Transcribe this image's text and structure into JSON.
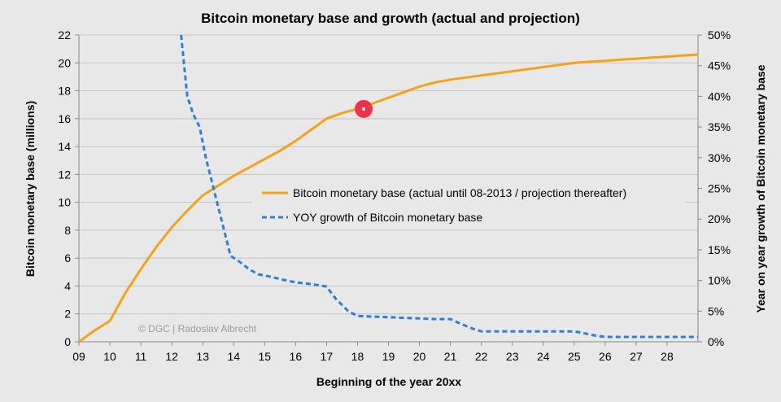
{
  "chart_data": {
    "type": "line",
    "title": "Bitcoin monetary base and growth (actual and projection)",
    "xlabel": "Beginning of the year 20xx",
    "ylabel": "Bitcoin monetary base (millions)",
    "y2label": "Year on year growth of Bitcoin monetary base",
    "xlim": [
      9,
      29
    ],
    "ylim": [
      0,
      22
    ],
    "y2lim": [
      0,
      50
    ],
    "x_ticks": [
      "09",
      "10",
      "11",
      "12",
      "13",
      "14",
      "15",
      "16",
      "17",
      "18",
      "19",
      "20",
      "21",
      "22",
      "23",
      "24",
      "25",
      "26",
      "27",
      "28"
    ],
    "y_ticks": [
      "0",
      "2",
      "4",
      "6",
      "8",
      "10",
      "12",
      "14",
      "16",
      "18",
      "20",
      "22"
    ],
    "y2_ticks": [
      "0%",
      "5%",
      "10%",
      "15%",
      "20%",
      "25%",
      "30%",
      "35%",
      "40%",
      "45%",
      "50%"
    ],
    "grid": "horizontal",
    "legend_position": "center-right",
    "copyright": "© DGC | Radoslav Albrecht",
    "highlight_point": {
      "x": 18.2,
      "y": 16.7,
      "color": "#f0314a"
    },
    "series": [
      {
        "name": "Bitcoin monetary base (actual until 08-2013 / projection thereafter)",
        "axis": "left",
        "color": "#f5a21b",
        "dash": "solid",
        "x": [
          9.0,
          9.5,
          10.0,
          10.5,
          11.0,
          11.5,
          12.0,
          12.5,
          13.0,
          13.5,
          14.0,
          14.5,
          15.0,
          15.5,
          16.0,
          16.5,
          17.0,
          17.5,
          18.0,
          18.5,
          19.0,
          19.5,
          20.0,
          20.5,
          21.0,
          21.5,
          22.0,
          22.5,
          23.0,
          23.5,
          24.0,
          24.5,
          25.0,
          25.5,
          26.0,
          26.5,
          27.0,
          27.5,
          28.0,
          28.5,
          29.0
        ],
        "values": [
          0.0,
          0.8,
          1.5,
          3.5,
          5.2,
          6.8,
          8.2,
          9.4,
          10.5,
          11.2,
          11.9,
          12.5,
          13.1,
          13.7,
          14.4,
          15.2,
          16.0,
          16.4,
          16.7,
          17.1,
          17.5,
          17.9,
          18.3,
          18.6,
          18.8,
          18.95,
          19.1,
          19.25,
          19.4,
          19.55,
          19.7,
          19.85,
          20.0,
          20.08,
          20.15,
          20.23,
          20.3,
          20.38,
          20.45,
          20.53,
          20.6
        ]
      },
      {
        "name": "YOY growth of Bitcoin monetary base",
        "axis": "right",
        "color": "#2f7ed8",
        "dash": "dashed",
        "x": [
          12.3,
          12.5,
          12.7,
          12.9,
          13.1,
          13.4,
          13.7,
          13.9,
          14.2,
          14.5,
          14.8,
          15.2,
          15.6,
          16.0,
          16.5,
          17.0,
          17.3,
          17.7,
          18.0,
          18.5,
          19.0,
          19.5,
          20.0,
          20.5,
          21.0,
          21.4,
          21.8,
          22.0,
          23.0,
          24.0,
          25.0,
          25.3,
          25.7,
          26.0,
          27.0,
          28.0,
          29.0
        ],
        "values": [
          50.0,
          40.0,
          37.0,
          35.0,
          30.0,
          24.0,
          18.0,
          14.0,
          13.0,
          11.8,
          11.0,
          10.6,
          10.1,
          9.7,
          9.4,
          9.0,
          7.0,
          5.0,
          4.2,
          4.1,
          4.0,
          3.9,
          3.8,
          3.7,
          3.7,
          2.8,
          2.0,
          1.7,
          1.7,
          1.7,
          1.7,
          1.4,
          1.0,
          0.8,
          0.8,
          0.8,
          0.8
        ]
      }
    ]
  }
}
